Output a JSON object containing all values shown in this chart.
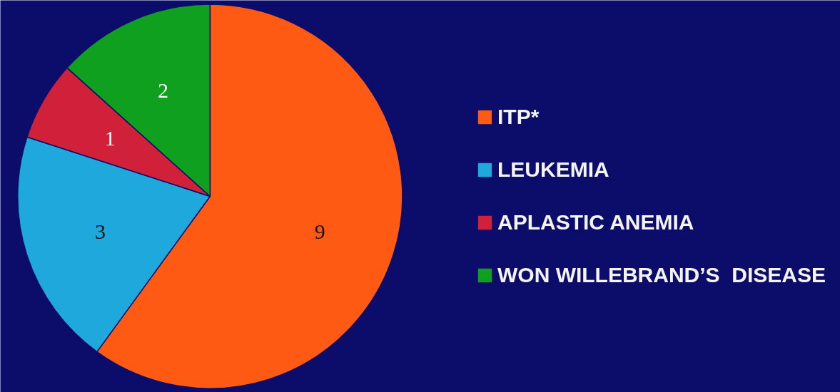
{
  "chart_data": {
    "type": "pie",
    "categories": [
      "ITP*",
      "LEUKEMIA",
      "APLASTIC ANEMIA",
      "WON WILLEBRAND’S  DISEASE"
    ],
    "values": [
      9,
      3,
      1,
      2
    ],
    "colors": [
      "#ff5a14",
      "#1ea8dc",
      "#d0203a",
      "#10a020"
    ],
    "data_labels": true,
    "legend": "right"
  }
}
